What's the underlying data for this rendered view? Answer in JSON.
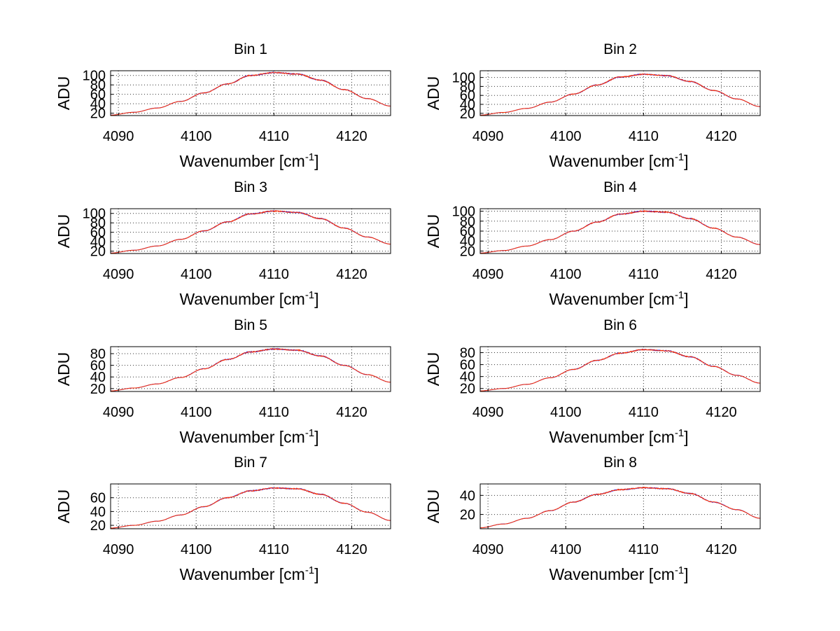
{
  "chart_data": [
    {
      "type": "line",
      "title": "Bin 1",
      "xlabel": "Wavenumber [cm",
      "xlabel_sup": "-1",
      "xlabel_end": "]",
      "ylabel": "ADU",
      "xlim": [
        4089,
        4125
      ],
      "ylim": [
        15,
        110
      ],
      "xticks": [
        4090,
        4100,
        4110,
        4120
      ],
      "yticks": [
        20,
        40,
        60,
        80,
        100
      ],
      "grid": true,
      "x": [
        4089,
        4092,
        4095,
        4098,
        4101,
        4104,
        4107,
        4110,
        4113,
        4116,
        4119,
        4122,
        4125
      ],
      "series": [
        {
          "color": "#0000ff",
          "values": [
            16,
            22,
            31,
            45,
            63,
            82,
            100,
            106,
            103,
            90,
            70,
            51,
            35
          ]
        },
        {
          "color": "#ff3300",
          "values": [
            16,
            22,
            31,
            45,
            63,
            82,
            100,
            106,
            103,
            90,
            70,
            51,
            35
          ]
        }
      ]
    },
    {
      "type": "line",
      "title": "Bin 2",
      "xlabel": "Wavenumber [cm",
      "xlabel_sup": "-1",
      "xlabel_end": "]",
      "ylabel": "ADU",
      "xlim": [
        4089,
        4125
      ],
      "ylim": [
        15,
        115
      ],
      "xticks": [
        4090,
        4100,
        4110,
        4120
      ],
      "yticks": [
        20,
        40,
        60,
        80,
        100
      ],
      "grid": true,
      "x": [
        4089,
        4092,
        4095,
        4098,
        4101,
        4104,
        4107,
        4110,
        4113,
        4116,
        4119,
        4122,
        4125
      ],
      "series": [
        {
          "color": "#0000ff",
          "values": [
            16,
            22,
            31,
            45,
            63,
            83,
            101,
            107,
            104,
            91,
            71,
            52,
            35
          ]
        },
        {
          "color": "#ff3300",
          "values": [
            16,
            22,
            31,
            45,
            63,
            83,
            101,
            107,
            104,
            91,
            71,
            52,
            35
          ]
        }
      ]
    },
    {
      "type": "line",
      "title": "Bin 3",
      "xlabel": "Wavenumber [cm",
      "xlabel_sup": "-1",
      "xlabel_end": "]",
      "ylabel": "ADU",
      "xlim": [
        4089,
        4125
      ],
      "ylim": [
        15,
        110
      ],
      "xticks": [
        4090,
        4100,
        4110,
        4120
      ],
      "yticks": [
        20,
        40,
        60,
        80,
        100
      ],
      "grid": true,
      "x": [
        4089,
        4092,
        4095,
        4098,
        4101,
        4104,
        4107,
        4110,
        4113,
        4116,
        4119,
        4122,
        4125
      ],
      "series": [
        {
          "color": "#0000ff",
          "values": [
            16,
            22,
            31,
            45,
            63,
            82,
            99,
            105,
            102,
            89,
            69,
            50,
            35
          ]
        },
        {
          "color": "#ff3300",
          "values": [
            16,
            22,
            31,
            45,
            63,
            82,
            99,
            105,
            102,
            89,
            69,
            50,
            35
          ]
        }
      ]
    },
    {
      "type": "line",
      "title": "Bin 4",
      "xlabel": "Wavenumber [cm",
      "xlabel_sup": "-1",
      "xlabel_end": "]",
      "ylabel": "ADU",
      "xlim": [
        4089,
        4125
      ],
      "ylim": [
        15,
        105
      ],
      "xticks": [
        4090,
        4100,
        4110,
        4120
      ],
      "yticks": [
        20,
        40,
        60,
        80,
        100
      ],
      "grid": true,
      "x": [
        4089,
        4092,
        4095,
        4098,
        4101,
        4104,
        4107,
        4110,
        4113,
        4116,
        4119,
        4122,
        4125
      ],
      "series": [
        {
          "color": "#0000ff",
          "values": [
            16,
            21,
            30,
            43,
            60,
            78,
            94,
            100,
            98,
            85,
            66,
            48,
            33
          ]
        },
        {
          "color": "#ff3300",
          "values": [
            16,
            21,
            30,
            43,
            60,
            78,
            94,
            100,
            98,
            85,
            66,
            48,
            33
          ]
        }
      ]
    },
    {
      "type": "line",
      "title": "Bin 5",
      "xlabel": "Wavenumber [cm",
      "xlabel_sup": "-1",
      "xlabel_end": "]",
      "ylabel": "ADU",
      "xlim": [
        4089,
        4125
      ],
      "ylim": [
        15,
        92
      ],
      "xticks": [
        4090,
        4100,
        4110,
        4120
      ],
      "yticks": [
        20,
        40,
        60,
        80
      ],
      "grid": true,
      "x": [
        4089,
        4092,
        4095,
        4098,
        4101,
        4104,
        4107,
        4110,
        4113,
        4116,
        4119,
        4122,
        4125
      ],
      "series": [
        {
          "color": "#0000ff",
          "values": [
            16,
            21,
            28,
            39,
            54,
            70,
            83,
            88,
            86,
            76,
            60,
            44,
            31
          ]
        },
        {
          "color": "#ff3300",
          "values": [
            16,
            21,
            28,
            39,
            54,
            70,
            83,
            88,
            86,
            76,
            60,
            44,
            31
          ]
        }
      ]
    },
    {
      "type": "line",
      "title": "Bin 6",
      "xlabel": "Wavenumber [cm",
      "xlabel_sup": "-1",
      "xlabel_end": "]",
      "ylabel": "ADU",
      "xlim": [
        4089,
        4125
      ],
      "ylim": [
        15,
        90
      ],
      "xticks": [
        4090,
        4100,
        4110,
        4120
      ],
      "yticks": [
        20,
        40,
        60,
        80
      ],
      "grid": true,
      "x": [
        4089,
        4092,
        4095,
        4098,
        4101,
        4104,
        4107,
        4110,
        4113,
        4116,
        4119,
        4122,
        4125
      ],
      "series": [
        {
          "color": "#0000ff",
          "values": [
            16,
            20,
            27,
            38,
            52,
            67,
            79,
            85,
            83,
            73,
            57,
            42,
            29
          ]
        },
        {
          "color": "#ff3300",
          "values": [
            16,
            20,
            27,
            38,
            52,
            67,
            79,
            85,
            83,
            73,
            57,
            42,
            29
          ]
        }
      ]
    },
    {
      "type": "line",
      "title": "Bin 7",
      "xlabel": "Wavenumber [cm",
      "xlabel_sup": "-1",
      "xlabel_end": "]",
      "ylabel": "ADU",
      "xlim": [
        4089,
        4125
      ],
      "ylim": [
        15,
        80
      ],
      "xticks": [
        4090,
        4100,
        4110,
        4120
      ],
      "yticks": [
        20,
        40,
        60
      ],
      "grid": true,
      "x": [
        4089,
        4092,
        4095,
        4098,
        4101,
        4104,
        4107,
        4110,
        4113,
        4116,
        4119,
        4122,
        4125
      ],
      "series": [
        {
          "color": "#0000ff",
          "values": [
            16,
            20,
            26,
            35,
            47,
            60,
            70,
            74,
            73,
            65,
            52,
            39,
            27
          ]
        },
        {
          "color": "#ff3300",
          "values": [
            16,
            20,
            26,
            35,
            47,
            60,
            70,
            74,
            73,
            65,
            52,
            39,
            27
          ]
        }
      ]
    },
    {
      "type": "line",
      "title": "Bin 8",
      "xlabel": "Wavenumber [cm",
      "xlabel_sup": "-1",
      "xlabel_end": "]",
      "ylabel": "ADU",
      "xlim": [
        4089,
        4125
      ],
      "ylim": [
        5,
        52
      ],
      "xticks": [
        4090,
        4100,
        4110,
        4120
      ],
      "yticks": [
        20,
        40
      ],
      "grid": true,
      "x": [
        4089,
        4092,
        4095,
        4098,
        4101,
        4104,
        4107,
        4110,
        4113,
        4116,
        4119,
        4122,
        4125
      ],
      "series": [
        {
          "color": "#0000ff",
          "values": [
            6,
            10,
            16,
            24,
            33,
            41,
            46,
            48,
            47,
            42,
            33,
            25,
            16
          ]
        },
        {
          "color": "#ff3300",
          "values": [
            6,
            10,
            16,
            24,
            33,
            41,
            46,
            48,
            47,
            42,
            33,
            25,
            16
          ]
        }
      ]
    }
  ]
}
